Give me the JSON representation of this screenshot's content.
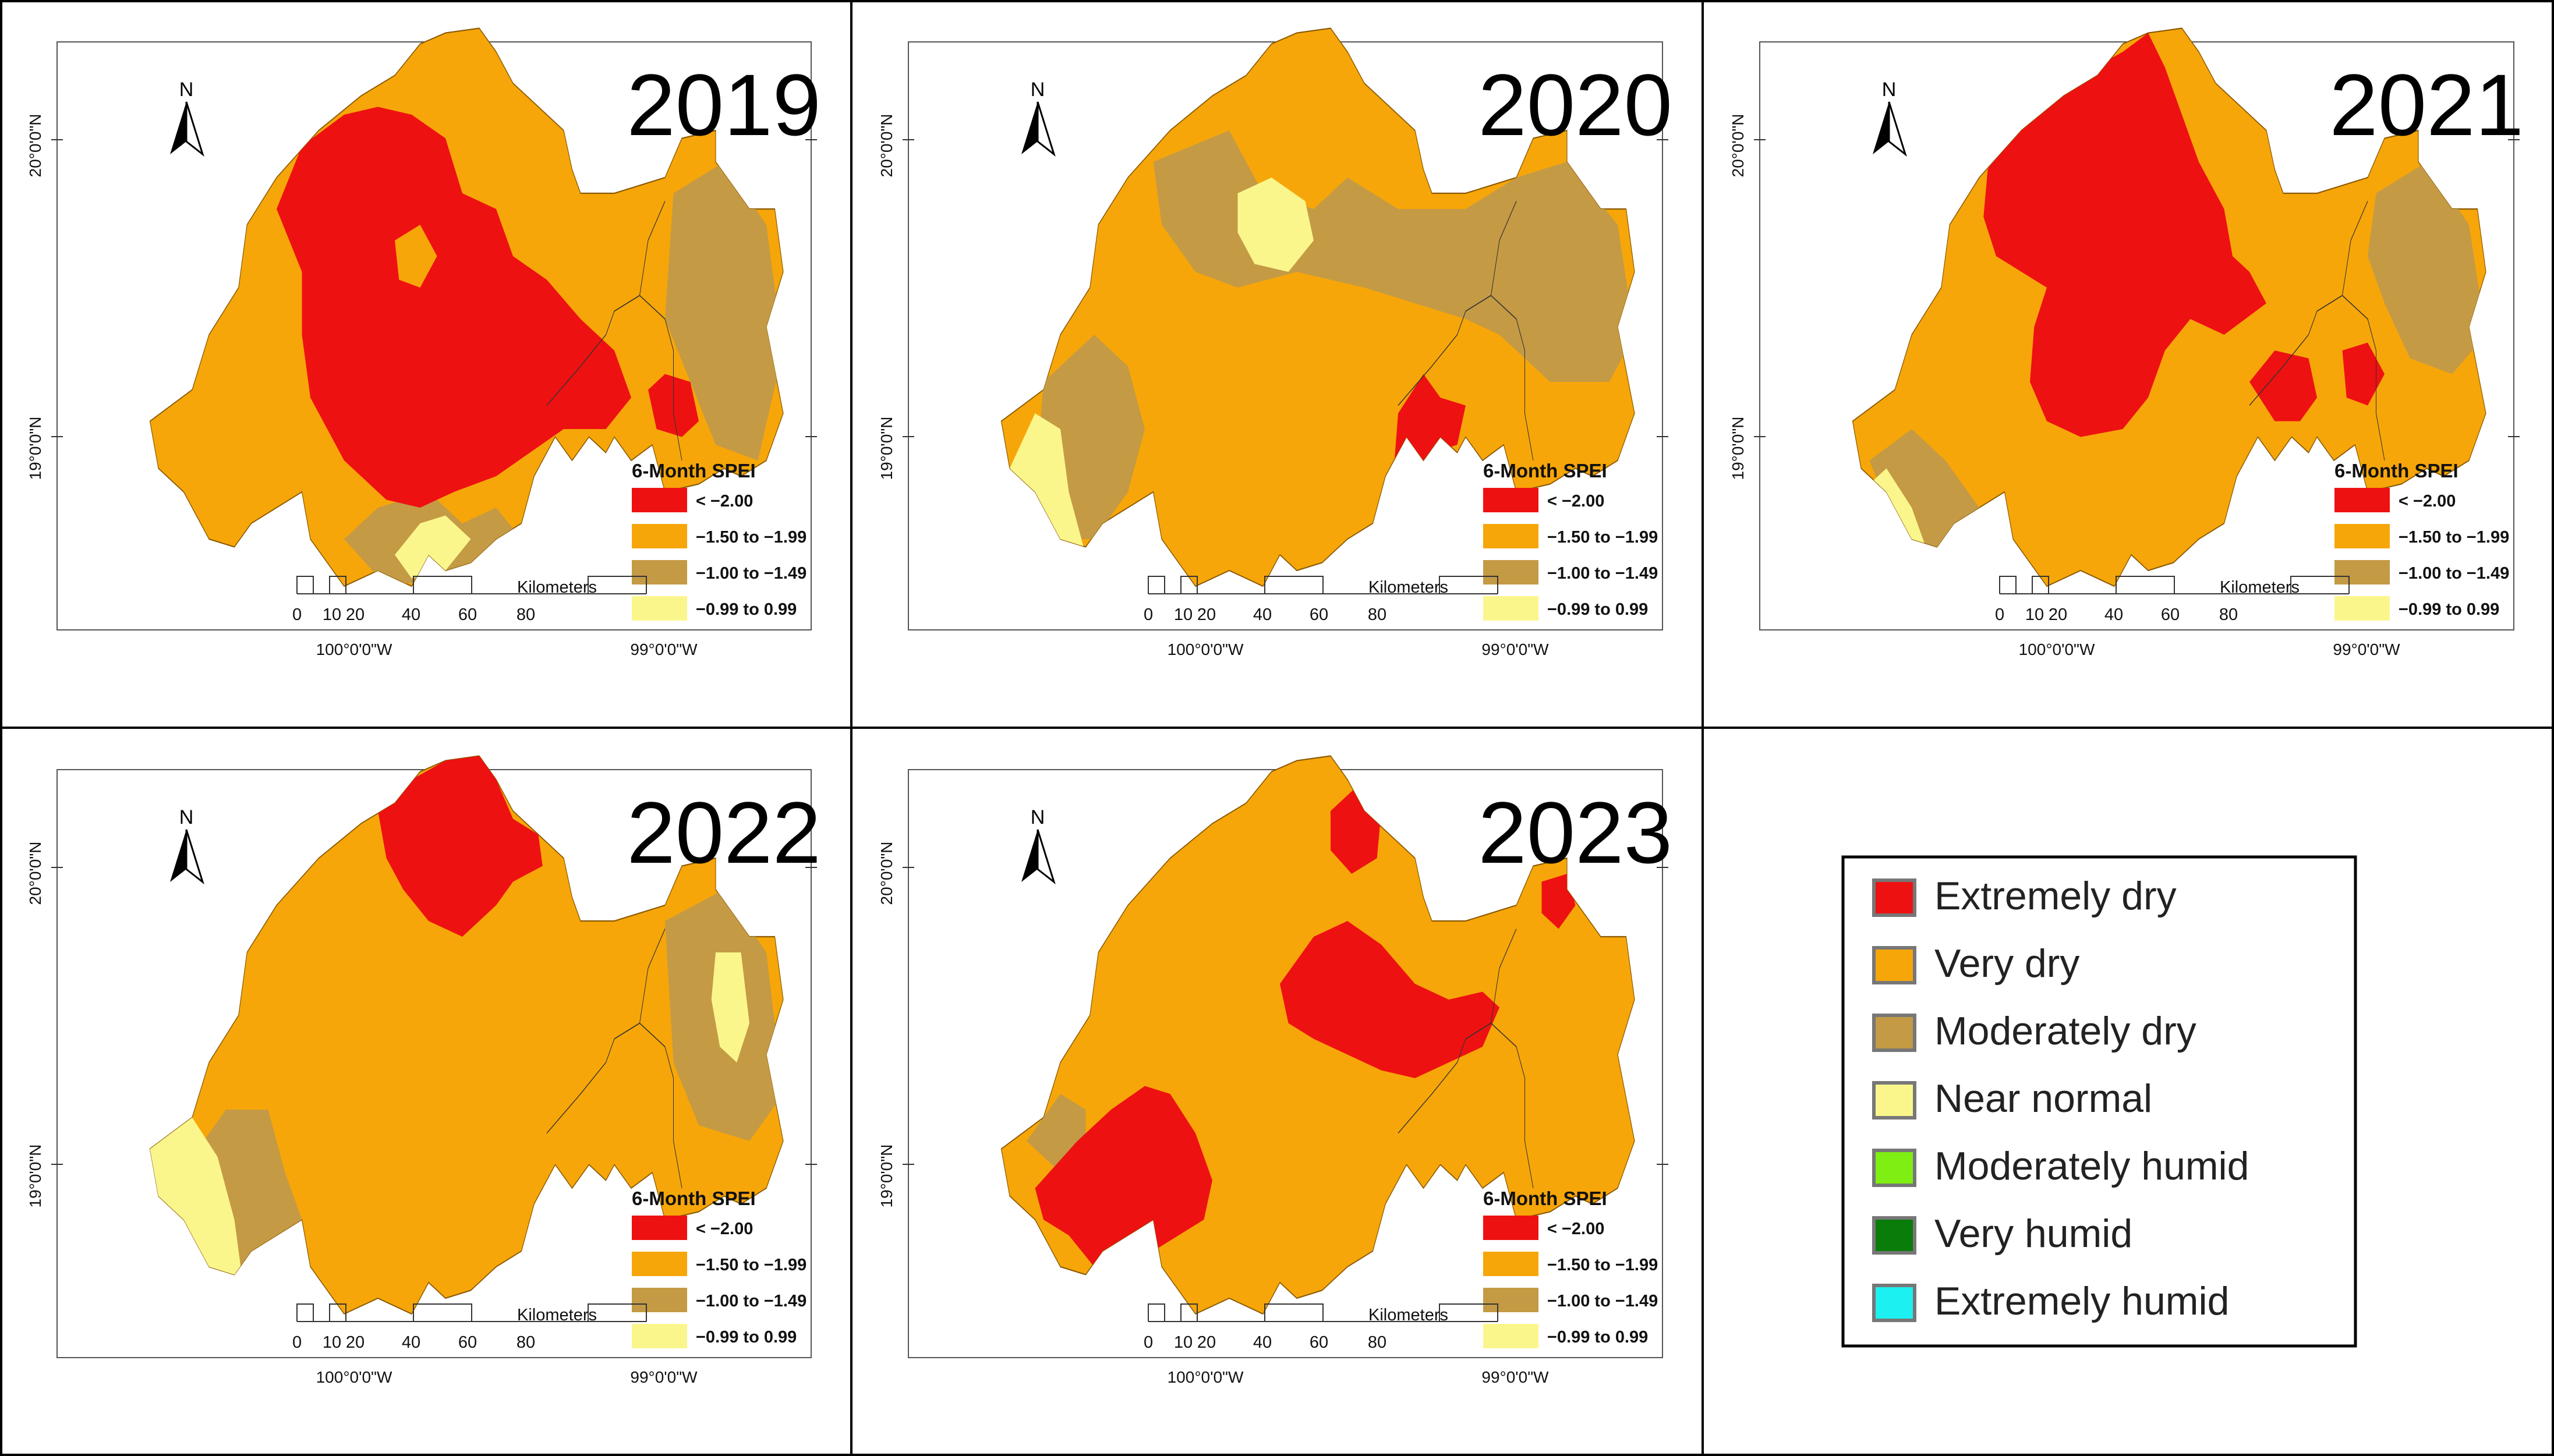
{
  "colors": {
    "extremely_dry": "#ee1111",
    "very_dry": "#f7a609",
    "moderately_dry": "#c49a45",
    "near_normal": "#fbf68c",
    "moderately_humid": "#7fef13",
    "very_humid": "#0a7c0a",
    "extremely_humid": "#1cf0f0",
    "border": "#000000",
    "swatch_border": "#777777"
  },
  "panels": [
    {
      "year": "2019"
    },
    {
      "year": "2020"
    },
    {
      "year": "2021"
    },
    {
      "year": "2022"
    },
    {
      "year": "2023"
    }
  ],
  "map_common": {
    "north_label": "N",
    "lat_labels": [
      "20°0'0\"N",
      "19°0'0\"N"
    ],
    "lon_labels": [
      "100°0'0\"W",
      "99°0'0\"W"
    ],
    "panel_legend": {
      "title": "6-Month SPEI",
      "items": [
        {
          "label": "< −2.00",
          "color_key": "extremely_dry"
        },
        {
          "label": "−1.50 to −1.99",
          "color_key": "very_dry"
        },
        {
          "label": "−1.00 to −1.49",
          "color_key": "moderately_dry"
        },
        {
          "label": "−0.99 to 0.99",
          "color_key": "near_normal"
        }
      ]
    },
    "scale_bar": {
      "ticks": [
        "0",
        "10",
        "20",
        "40",
        "60",
        "80"
      ],
      "unit": "Kilometers"
    }
  },
  "main_legend": {
    "items": [
      {
        "label": "Extremely dry",
        "color_key": "extremely_dry"
      },
      {
        "label": "Very dry",
        "color_key": "very_dry"
      },
      {
        "label": "Moderately dry",
        "color_key": "moderately_dry"
      },
      {
        "label": "Near normal",
        "color_key": "near_normal"
      },
      {
        "label": "Moderately humid",
        "color_key": "moderately_humid"
      },
      {
        "label": "Very humid",
        "color_key": "very_humid"
      },
      {
        "label": "Extremely humid",
        "color_key": "extremely_humid"
      }
    ]
  }
}
